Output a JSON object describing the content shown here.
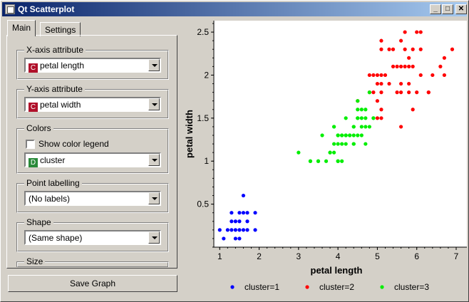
{
  "window": {
    "title": "Qt Scatterplot",
    "controls": {
      "minimize": "_",
      "maximize": "□",
      "close": "✕"
    }
  },
  "tabs": [
    {
      "label": "Main",
      "active": true
    },
    {
      "label": "Settings",
      "active": false
    }
  ],
  "main": {
    "x_axis": {
      "label": "X-axis attribute",
      "badge": "C",
      "value": "petal length"
    },
    "y_axis": {
      "label": "Y-axis attribute",
      "badge": "C",
      "value": "petal width"
    },
    "colors": {
      "label": "Colors",
      "checkbox_label": "Show color legend",
      "checked": false,
      "badge": "D",
      "value": "cluster"
    },
    "point_labelling": {
      "label": "Point labelling",
      "value": "(No labels)"
    },
    "shape": {
      "label": "Shape",
      "value": "(Same shape)"
    },
    "size": {
      "label": "Size"
    },
    "badge_colors": {
      "C": "#b0102a",
      "D": "#2a8a3a"
    }
  },
  "save_button": "Save Graph",
  "chart_data": {
    "type": "scatter",
    "xlabel": "petal length",
    "ylabel": "petal width",
    "xlim": [
      0.85,
      7.0
    ],
    "ylim": [
      0.0,
      2.6
    ],
    "xticks": [
      1,
      2,
      3,
      4,
      5,
      6,
      7
    ],
    "yticks": [
      0.5,
      1,
      1.5,
      2,
      2.5
    ],
    "xtick_labels": [
      "1",
      "2",
      "3",
      "4",
      "5",
      "6",
      "7"
    ],
    "ytick_labels": [
      "0.5",
      "1",
      "1.5",
      "2",
      "2.5"
    ],
    "legend_position": "bottom",
    "series": [
      {
        "name": "cluster=1",
        "color": "#0000ff",
        "points": [
          [
            1.1,
            0.1
          ],
          [
            1.4,
            0.1
          ],
          [
            1.5,
            0.1
          ],
          [
            1.0,
            0.2
          ],
          [
            1.2,
            0.2
          ],
          [
            1.3,
            0.2
          ],
          [
            1.4,
            0.2
          ],
          [
            1.5,
            0.2
          ],
          [
            1.6,
            0.2
          ],
          [
            1.7,
            0.2
          ],
          [
            1.9,
            0.2
          ],
          [
            1.3,
            0.3
          ],
          [
            1.4,
            0.3
          ],
          [
            1.5,
            0.3
          ],
          [
            1.7,
            0.3
          ],
          [
            1.3,
            0.4
          ],
          [
            1.5,
            0.4
          ],
          [
            1.6,
            0.4
          ],
          [
            1.7,
            0.4
          ],
          [
            1.9,
            0.4
          ],
          [
            1.6,
            0.6
          ]
        ]
      },
      {
        "name": "cluster=2",
        "color": "#ff0000",
        "points": [
          [
            4.8,
            1.8
          ],
          [
            5.1,
            1.6
          ],
          [
            5.0,
            1.7
          ],
          [
            4.5,
            1.7
          ],
          [
            5.1,
            1.5
          ],
          [
            5.6,
            1.4
          ],
          [
            5.0,
            1.5
          ],
          [
            5.1,
            1.8
          ],
          [
            5.6,
            1.8
          ],
          [
            5.8,
            1.8
          ],
          [
            6.0,
            1.8
          ],
          [
            6.3,
            1.8
          ],
          [
            4.9,
            1.8
          ],
          [
            5.5,
            1.8
          ],
          [
            4.8,
            2.0
          ],
          [
            5.0,
            2.0
          ],
          [
            5.2,
            2.0
          ],
          [
            5.1,
            2.0
          ],
          [
            5.5,
            2.1
          ],
          [
            5.6,
            2.1
          ],
          [
            5.8,
            2.1
          ],
          [
            6.1,
            2.0
          ],
          [
            6.6,
            2.1
          ],
          [
            6.7,
            2.0
          ],
          [
            5.1,
            2.3
          ],
          [
            5.3,
            2.3
          ],
          [
            5.4,
            2.3
          ],
          [
            6.1,
            2.3
          ],
          [
            5.7,
            2.3
          ],
          [
            5.9,
            2.3
          ],
          [
            6.9,
            2.3
          ],
          [
            5.1,
            2.4
          ],
          [
            5.6,
            2.4
          ],
          [
            6.1,
            2.5
          ],
          [
            5.7,
            2.5
          ],
          [
            6.0,
            2.5
          ],
          [
            5.8,
            2.2
          ],
          [
            6.7,
            2.2
          ],
          [
            5.9,
            2.1
          ],
          [
            5.3,
            1.9
          ],
          [
            5.1,
            1.9
          ],
          [
            5.6,
            1.9
          ],
          [
            5.8,
            1.9
          ],
          [
            4.9,
            2.0
          ],
          [
            5.7,
            2.1
          ],
          [
            5.4,
            2.1
          ],
          [
            5.9,
            1.6
          ],
          [
            6.4,
            2.0
          ],
          [
            5.0,
            1.9
          ],
          [
            6.3,
            1.8
          ]
        ]
      },
      {
        "name": "cluster=3",
        "color": "#00ee00",
        "points": [
          [
            3.0,
            1.1
          ],
          [
            3.3,
            1.0
          ],
          [
            3.5,
            1.0
          ],
          [
            3.7,
            1.0
          ],
          [
            3.9,
            1.1
          ],
          [
            4.0,
            1.0
          ],
          [
            4.1,
            1.0
          ],
          [
            3.5,
            1.0
          ],
          [
            3.6,
            1.3
          ],
          [
            3.8,
            1.1
          ],
          [
            3.9,
            1.2
          ],
          [
            3.9,
            1.4
          ],
          [
            4.0,
            1.3
          ],
          [
            4.0,
            1.2
          ],
          [
            4.1,
            1.3
          ],
          [
            4.2,
            1.3
          ],
          [
            4.2,
            1.2
          ],
          [
            4.3,
            1.3
          ],
          [
            4.4,
            1.4
          ],
          [
            4.4,
            1.3
          ],
          [
            4.4,
            1.2
          ],
          [
            4.5,
            1.5
          ],
          [
            4.5,
            1.3
          ],
          [
            4.6,
            1.5
          ],
          [
            4.6,
            1.4
          ],
          [
            4.6,
            1.3
          ],
          [
            4.7,
            1.4
          ],
          [
            4.7,
            1.5
          ],
          [
            4.7,
            1.2
          ],
          [
            4.7,
            1.6
          ],
          [
            4.8,
            1.4
          ],
          [
            4.8,
            1.8
          ],
          [
            4.9,
            1.5
          ],
          [
            4.5,
            1.6
          ],
          [
            4.2,
            1.5
          ],
          [
            4.1,
            1.2
          ],
          [
            4.4,
            1.4
          ],
          [
            4.5,
            1.5
          ],
          [
            3.9,
            1.4
          ],
          [
            4.3,
            1.3
          ],
          [
            4.6,
            1.6
          ],
          [
            4.5,
            1.7
          ],
          [
            4.0,
            1.3
          ],
          [
            4.9,
            1.5
          ],
          [
            3.8,
            1.1
          ],
          [
            4.1,
            1.3
          ],
          [
            4.2,
            1.3
          ],
          [
            4.0,
            1.0
          ],
          [
            3.3,
            1.0
          ],
          [
            4.4,
            1.2
          ]
        ]
      }
    ]
  }
}
